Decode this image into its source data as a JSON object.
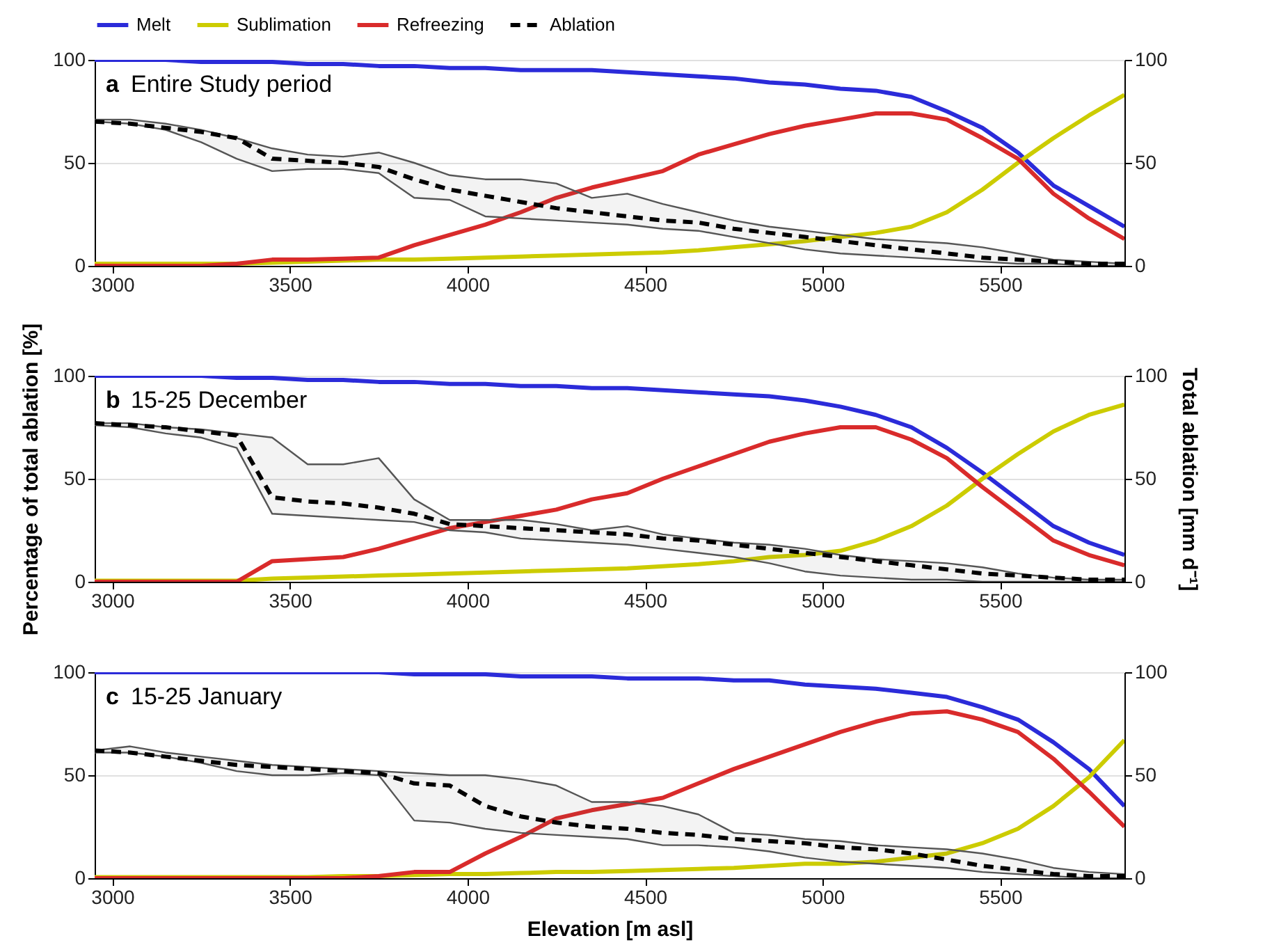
{
  "chart_data": [
    {
      "type": "line",
      "title": "a Entire Study period",
      "legend": "top",
      "grid": "y",
      "xlim": [
        2950,
        5850
      ],
      "xticks": [
        3000,
        3500,
        4000,
        4500,
        5000,
        5500
      ],
      "ylim": [
        0,
        100
      ],
      "yticks": [
        0,
        50,
        100
      ],
      "y2lim": [
        0,
        100
      ],
      "y2ticks": [
        0,
        50,
        100
      ],
      "x": [
        2950,
        3050,
        3150,
        3250,
        3350,
        3450,
        3550,
        3650,
        3750,
        3850,
        3950,
        4050,
        4150,
        4250,
        4350,
        4450,
        4550,
        4650,
        4750,
        4850,
        4950,
        5050,
        5150,
        5250,
        5350,
        5450,
        5550,
        5650,
        5750,
        5850
      ],
      "series": [
        {
          "name": "Melt",
          "color": "#2b2bd9",
          "line_style": "solid",
          "values": [
            100,
            100,
            100,
            99,
            99,
            99,
            98,
            98,
            97,
            97,
            96,
            96,
            95,
            95,
            95,
            94,
            93,
            92,
            91,
            89,
            88,
            86,
            85,
            82,
            75,
            67,
            55,
            39,
            29,
            19
          ]
        },
        {
          "name": "Sublimation",
          "color": "#cccc00",
          "line_style": "solid",
          "values": [
            1,
            1,
            1,
            1,
            1,
            1.5,
            2,
            2.5,
            3,
            3,
            3.5,
            4,
            4.5,
            5,
            5.5,
            6,
            6.5,
            7.5,
            9,
            10.5,
            12,
            14,
            16,
            19,
            26,
            37,
            50,
            62,
            73,
            83
          ]
        },
        {
          "name": "Refreezing",
          "color": "#d92b2b",
          "line_style": "solid",
          "values": [
            0,
            0,
            0,
            0,
            1,
            3,
            3,
            3.5,
            4,
            10,
            15,
            20,
            26,
            33,
            38,
            42,
            46,
            54,
            59,
            64,
            68,
            71,
            74,
            74,
            71,
            62,
            52,
            35,
            23,
            13
          ]
        },
        {
          "name": "Ablation",
          "color": "#000000",
          "line_style": "dashed",
          "axis": "y2",
          "values": [
            70,
            69,
            67,
            65,
            62,
            52,
            51,
            50,
            48,
            42,
            37,
            34,
            31,
            28,
            26,
            24,
            22,
            21,
            18,
            16,
            14,
            12,
            10,
            8,
            6,
            4,
            3,
            2,
            1,
            1
          ],
          "lower": [
            70,
            69,
            66,
            60,
            52,
            46,
            47,
            47,
            45,
            33,
            32,
            24,
            23,
            22,
            21,
            20,
            18,
            17,
            14,
            11,
            8,
            6,
            5,
            4,
            3,
            2,
            1,
            1,
            0,
            0
          ],
          "upper": [
            71,
            71,
            69,
            66,
            62,
            57,
            54,
            53,
            55,
            50,
            44,
            42,
            42,
            40,
            33,
            35,
            30,
            26,
            22,
            19,
            17,
            15,
            13,
            12,
            11,
            9,
            6,
            3,
            2,
            1
          ]
        }
      ]
    },
    {
      "type": "line",
      "title": "b 15-25 December",
      "ylabel": "Percentage of total ablation [%]",
      "y2label": "Total ablation [mm d⁻¹]",
      "grid": "y",
      "xlim": [
        2950,
        5850
      ],
      "xticks": [
        3000,
        3500,
        4000,
        4500,
        5000,
        5500
      ],
      "ylim": [
        0,
        100
      ],
      "yticks": [
        0,
        50,
        100
      ],
      "y2lim": [
        0,
        100
      ],
      "y2ticks": [
        0,
        50,
        100
      ],
      "x": [
        2950,
        3050,
        3150,
        3250,
        3350,
        3450,
        3550,
        3650,
        3750,
        3850,
        3950,
        4050,
        4150,
        4250,
        4350,
        4450,
        4550,
        4650,
        4750,
        4850,
        4950,
        5050,
        5150,
        5250,
        5350,
        5450,
        5550,
        5650,
        5750,
        5850
      ],
      "series": [
        {
          "color": "#2b2bd9",
          "line_style": "solid",
          "values": [
            100,
            100,
            100,
            100,
            99,
            99,
            98,
            98,
            97,
            97,
            96,
            96,
            95,
            95,
            94,
            94,
            93,
            92,
            91,
            90,
            88,
            85,
            81,
            75,
            65,
            53,
            40,
            27,
            19,
            13
          ]
        },
        {
          "color": "#cccc00",
          "line_style": "solid",
          "values": [
            0.5,
            0.5,
            0.5,
            0.5,
            0.5,
            1.5,
            2,
            2.5,
            3,
            3.5,
            4,
            4.5,
            5,
            5.5,
            6,
            6.5,
            7.5,
            8.5,
            10,
            12,
            13,
            15,
            20,
            27,
            37,
            50,
            62,
            73,
            81,
            86
          ]
        },
        {
          "color": "#d92b2b",
          "line_style": "solid",
          "values": [
            0,
            0,
            0,
            0,
            0,
            10,
            11,
            12,
            16,
            21,
            26,
            29,
            32,
            35,
            40,
            43,
            50,
            56,
            62,
            68,
            72,
            75,
            75,
            69,
            60,
            46,
            33,
            20,
            13,
            8
          ]
        },
        {
          "color": "#000000",
          "line_style": "dashed",
          "axis": "y2",
          "values": [
            77,
            76,
            75,
            73,
            71,
            41,
            39,
            38,
            36,
            33,
            28,
            27,
            26,
            25,
            24,
            23,
            21,
            20,
            18,
            16,
            14,
            12,
            10,
            8,
            6,
            4,
            3,
            2,
            1,
            1
          ],
          "lower": [
            76,
            75,
            72,
            70,
            65,
            33,
            32,
            31,
            30,
            29,
            25,
            24,
            21,
            20,
            19,
            18,
            16,
            14,
            12,
            9,
            5,
            3,
            2,
            1,
            1,
            0,
            0,
            0,
            0,
            0
          ],
          "upper": [
            77,
            77,
            75,
            74,
            72,
            70,
            57,
            57,
            60,
            40,
            30,
            30,
            30,
            28,
            25,
            27,
            23,
            21,
            19,
            18,
            16,
            13,
            11,
            10,
            9,
            7,
            4,
            2,
            1,
            1
          ]
        }
      ]
    },
    {
      "type": "line",
      "title": "c 15-25 January",
      "xlabel": "Elevation [m asl]",
      "grid": "y",
      "xlim": [
        2950,
        5850
      ],
      "xticks": [
        3000,
        3500,
        4000,
        4500,
        5000,
        5500
      ],
      "ylim": [
        0,
        100
      ],
      "yticks": [
        0,
        50,
        100
      ],
      "y2lim": [
        0,
        100
      ],
      "y2ticks": [
        0,
        50,
        100
      ],
      "x": [
        2950,
        3050,
        3150,
        3250,
        3350,
        3450,
        3550,
        3650,
        3750,
        3850,
        3950,
        4050,
        4150,
        4250,
        4350,
        4450,
        4550,
        4650,
        4750,
        4850,
        4950,
        5050,
        5150,
        5250,
        5350,
        5450,
        5550,
        5650,
        5750,
        5850
      ],
      "series": [
        {
          "color": "#2b2bd9",
          "line_style": "solid",
          "values": [
            100,
            100,
            100,
            100,
            100,
            100,
            100,
            100,
            100,
            99,
            99,
            99,
            98,
            98,
            98,
            97,
            97,
            97,
            96,
            96,
            94,
            93,
            92,
            90,
            88,
            83,
            77,
            66,
            53,
            35
          ]
        },
        {
          "color": "#cccc00",
          "line_style": "solid",
          "values": [
            0.5,
            0.5,
            0.5,
            0.5,
            0.5,
            0.5,
            0.5,
            1,
            1,
            1.5,
            2,
            2,
            2.5,
            3,
            3,
            3.5,
            4,
            4.5,
            5,
            6,
            7,
            7,
            8,
            10,
            12,
            17,
            24,
            35,
            49,
            67
          ]
        },
        {
          "color": "#d92b2b",
          "line_style": "solid",
          "values": [
            0,
            0,
            0,
            0,
            0,
            0,
            0,
            0,
            1,
            3,
            3,
            12,
            20,
            29,
            33,
            36,
            39,
            46,
            53,
            59,
            65,
            71,
            76,
            80,
            81,
            77,
            71,
            58,
            42,
            25
          ]
        },
        {
          "color": "#000000",
          "line_style": "dashed",
          "axis": "y2",
          "values": [
            62,
            61,
            59,
            57,
            55,
            54,
            53,
            52,
            51,
            46,
            45,
            35,
            30,
            27,
            25,
            24,
            22,
            21,
            19,
            18,
            17,
            15,
            14,
            12,
            9,
            6,
            4,
            2,
            1,
            1
          ],
          "lower": [
            61,
            61,
            59,
            56,
            52,
            50,
            50,
            51,
            50,
            28,
            27,
            24,
            22,
            21,
            20,
            19,
            16,
            16,
            15,
            13,
            10,
            8,
            7,
            6,
            5,
            3,
            2,
            1,
            0,
            0
          ],
          "upper": [
            62,
            64,
            61,
            59,
            57,
            55,
            54,
            53,
            52,
            51,
            50,
            50,
            48,
            45,
            37,
            37,
            35,
            31,
            22,
            21,
            19,
            18,
            16,
            15,
            14,
            12,
            9,
            5,
            3,
            2
          ]
        }
      ]
    }
  ]
}
